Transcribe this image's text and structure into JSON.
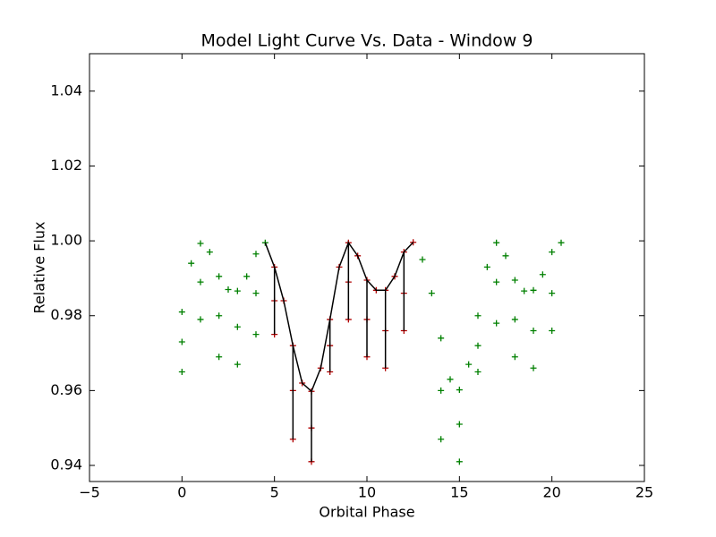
{
  "chart_data": {
    "type": "scatter",
    "title": "Model Light Curve Vs. Data - Window 9",
    "x_label": "Orbital Phase",
    "y_label": "Relative Flux",
    "xlim": [
      -5,
      25
    ],
    "xticks": [
      {
        "value": -5,
        "label": "−5"
      },
      0,
      5,
      10,
      15,
      20,
      25
    ],
    "ylim": [
      0.9357,
      1.05
    ],
    "yticks": [
      0.94,
      0.96,
      0.98,
      {
        "value": 1.0,
        "label": "1.00"
      },
      1.02,
      1.04
    ],
    "grid": false,
    "series": [
      {
        "color": "#008000",
        "mode": "markers",
        "x": [
          0,
          0,
          0,
          0.5,
          1,
          1,
          1,
          1.5,
          2,
          2,
          2,
          2.5,
          3,
          3,
          3,
          3.5,
          4,
          4,
          4,
          4.5,
          13,
          13.5,
          14,
          14,
          14,
          14.5,
          15,
          15,
          15,
          15.5,
          16,
          16,
          16,
          16.5,
          17,
          17,
          17,
          17.5,
          18,
          18,
          18,
          18.5,
          19,
          19,
          19,
          19.5,
          20,
          20,
          20,
          20.5
        ],
        "values": [
          0.981,
          0.973,
          0.965,
          0.994,
          0.9993,
          0.989,
          0.979,
          0.997,
          0.9905,
          0.98,
          0.969,
          0.987,
          0.9866,
          0.977,
          0.967,
          0.9905,
          0.9965,
          0.986,
          0.975,
          0.9995,
          0.995,
          0.986,
          0.974,
          0.96,
          0.947,
          0.963,
          0.9602,
          0.951,
          0.941,
          0.967,
          0.98,
          0.972,
          0.965,
          0.993,
          0.9995,
          0.989,
          0.978,
          0.996,
          0.9895,
          0.979,
          0.969,
          0.9866,
          0.9868,
          0.976,
          0.966,
          0.991,
          0.997,
          0.986,
          0.976,
          0.9995
        ]
      },
      {
        "color": "#b00000",
        "mode": "markers",
        "x": [
          5,
          5,
          5,
          5.5,
          6,
          6,
          6,
          6.5,
          7,
          7,
          7,
          7.5,
          8,
          8,
          8,
          8.5,
          9,
          9,
          9,
          9.5,
          10,
          10,
          10,
          10.5,
          11,
          11,
          11,
          11.5,
          12,
          12,
          12,
          12.5
        ],
        "values": [
          0.993,
          0.984,
          0.975,
          0.984,
          0.972,
          0.96,
          0.947,
          0.962,
          0.9598,
          0.95,
          0.941,
          0.966,
          0.979,
          0.972,
          0.965,
          0.993,
          0.9995,
          0.989,
          0.979,
          0.996,
          0.9895,
          0.979,
          0.969,
          0.9868,
          0.9868,
          0.976,
          0.966,
          0.9905,
          0.997,
          0.986,
          0.976,
          0.9996
        ]
      },
      {
        "color": "#000000",
        "mode": "line",
        "x": [
          4.5,
          5,
          5,
          5,
          5.5,
          6,
          6,
          6,
          6.5,
          7,
          7,
          7,
          7.5,
          8,
          8,
          8,
          8.5,
          9,
          9,
          9,
          9.5,
          10,
          10,
          10,
          10.5,
          11,
          11,
          11,
          11.5,
          12,
          12,
          12,
          12.5
        ],
        "values": [
          0.9995,
          0.993,
          0.975,
          0.993,
          0.984,
          0.972,
          0.947,
          0.972,
          0.962,
          0.9598,
          0.941,
          0.9598,
          0.966,
          0.979,
          0.965,
          0.979,
          0.993,
          0.9995,
          0.979,
          0.9995,
          0.996,
          0.9895,
          0.969,
          0.9895,
          0.9868,
          0.9868,
          0.966,
          0.9868,
          0.9905,
          0.997,
          0.976,
          0.997,
          0.9996
        ]
      }
    ]
  }
}
